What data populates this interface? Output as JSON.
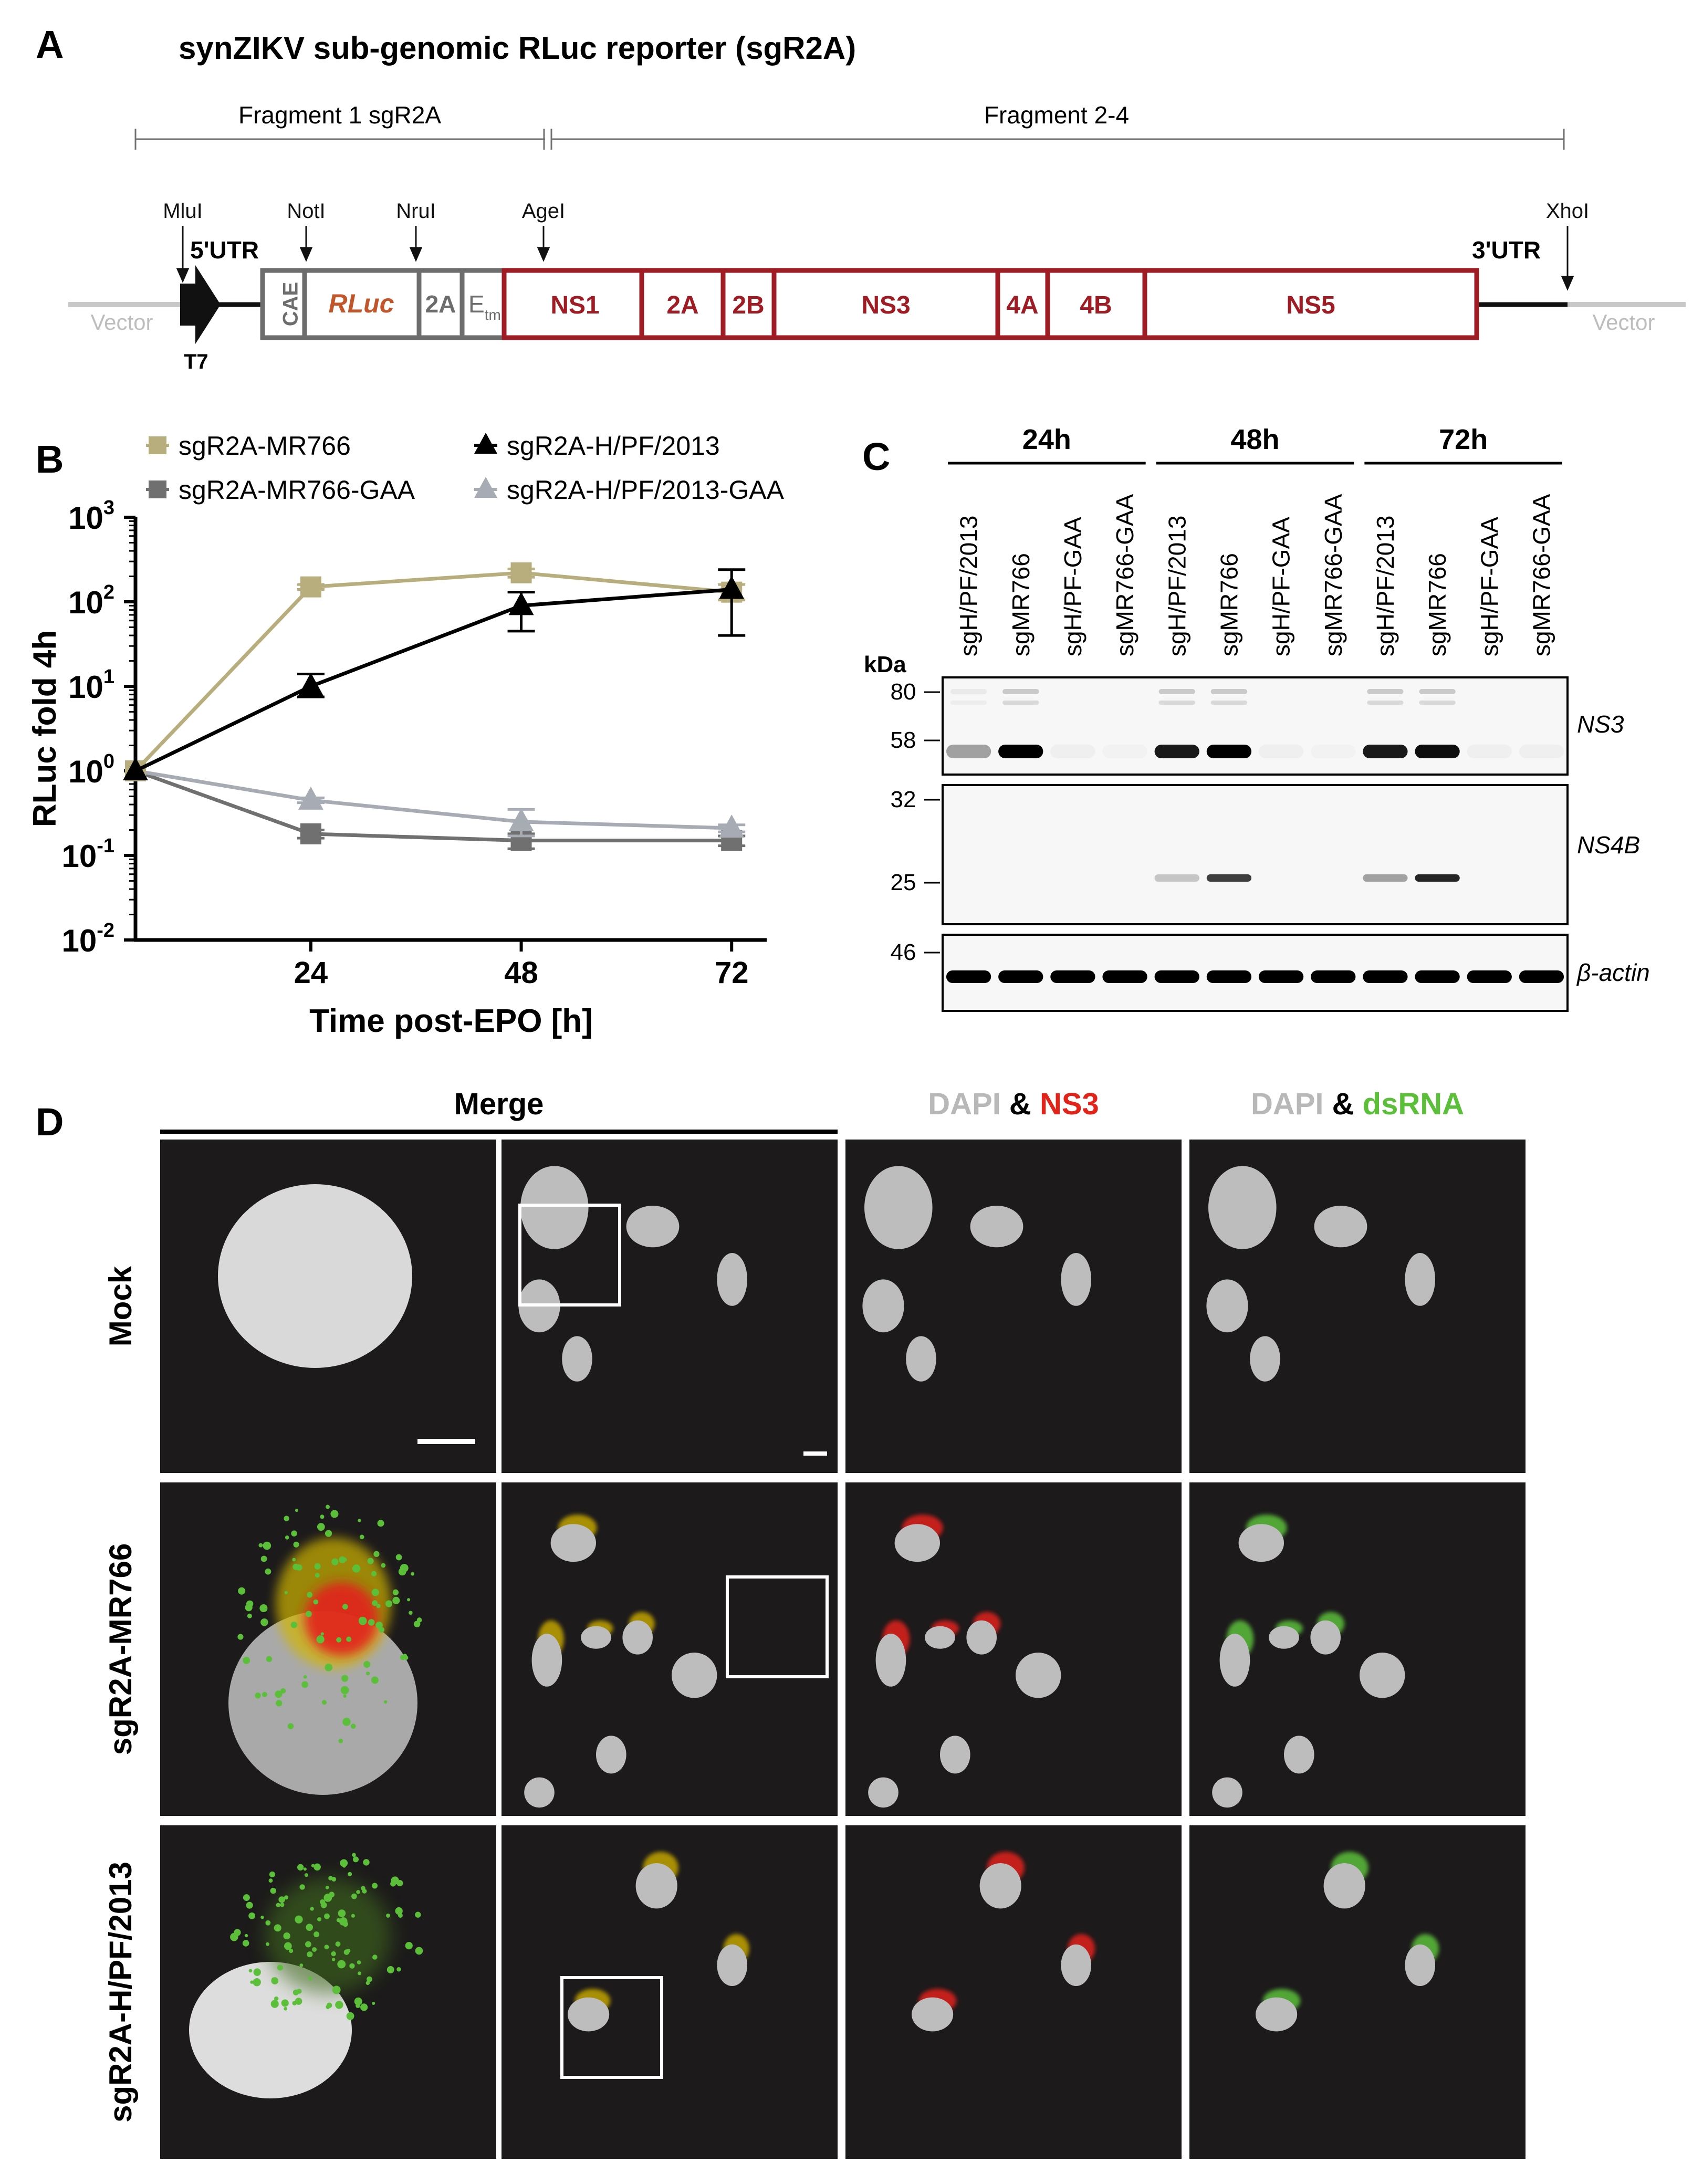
{
  "panel_labels": {
    "a": "A",
    "b": "B",
    "c": "C",
    "d": "D"
  },
  "panel_a": {
    "title": "synZIKV sub-genomic RLuc reporter (sgR2A)",
    "fragment1": "Fragment 1 sgR2A",
    "fragment2": "Fragment 2-4",
    "sites": {
      "mlui": "MluI",
      "noti": "NotI",
      "nrui": "NruI",
      "agei": "AgeI",
      "xhoi": "XhoI"
    },
    "utr5": "5'UTR",
    "utr3": "3'UTR",
    "t7": "T7",
    "vector_left": "Vector",
    "vector_right": "Vector",
    "cae": "CAE",
    "rluc": "RLuc",
    "p2a": "2A",
    "etm_main": "E",
    "etm_sub": "tm",
    "ns1": "NS1",
    "ns2a": "2A",
    "ns2b": "2B",
    "ns3": "NS3",
    "ns4a": "4A",
    "ns4b": "4B",
    "ns5": "NS5",
    "colors": {
      "grey_box": "#6d6d6d",
      "red_box": "#a01c24",
      "rluc_text": "#c0562a",
      "vector": "#bdbdbd"
    }
  },
  "chart_data": {
    "type": "line",
    "x": [
      4,
      24,
      48,
      72
    ],
    "x_ticks": [
      "24",
      "48",
      "72"
    ],
    "xlabel": "Time post-EPO [h]",
    "ylabel": "RLuc fold 4h",
    "y_scale": "log10",
    "ylim_exp": [
      -2,
      3
    ],
    "y_tick_base": "10",
    "y_tick_exps": [
      "3",
      "2",
      "1",
      "0",
      "-1",
      "-2"
    ],
    "series": [
      {
        "name": "sgR2A-MR766",
        "marker": "square",
        "color": "#b8ad7c",
        "values": [
          1,
          150,
          220,
          130
        ],
        "err_low": [
          1,
          140,
          195,
          105
        ],
        "err_high": [
          1,
          160,
          245,
          160
        ]
      },
      {
        "name": "sgR2A-MR766-GAA",
        "marker": "square",
        "color": "#707070",
        "values": [
          1,
          0.18,
          0.15,
          0.15
        ],
        "err_low": [
          1,
          0.16,
          0.12,
          0.13
        ],
        "err_high": [
          1,
          0.2,
          0.18,
          0.17
        ]
      },
      {
        "name": "sgR2A-H/PF/2013",
        "marker": "triangle",
        "color": "#000000",
        "values": [
          1,
          10,
          90,
          140
        ],
        "err_low": [
          1,
          7.5,
          45,
          40
        ],
        "err_high": [
          1,
          14,
          130,
          240
        ]
      },
      {
        "name": "sgR2A-H/PF/2013-GAA",
        "marker": "triangle",
        "color": "#a7acb4",
        "values": [
          1,
          0.45,
          0.25,
          0.21
        ],
        "err_low": [
          1,
          0.42,
          0.17,
          0.19
        ],
        "err_high": [
          1,
          0.48,
          0.35,
          0.23
        ]
      }
    ]
  },
  "panel_c": {
    "timepoints": [
      "24h",
      "48h",
      "72h"
    ],
    "lanes": [
      "sgH/PF/2013",
      "sgMR766",
      "sgH/PF-GAA",
      "sgMR766-GAA",
      "sgH/PF/2013",
      "sgMR766",
      "sgH/PF-GAA",
      "sgMR766-GAA",
      "sgH/PF/2013",
      "sgMR766",
      "sgH/PF-GAA",
      "sgMR766-GAA"
    ],
    "kda_label": "kDa",
    "markers": {
      "m80": "80",
      "m58": "58",
      "m32": "32",
      "m25": "25",
      "m46": "46"
    },
    "blot_ns3": "NS3",
    "blot_ns4b": "NS4B",
    "blot_actin": "β-actin",
    "band_ns3": [
      0.35,
      1.0,
      0.03,
      0.02,
      0.9,
      1.0,
      0.03,
      0.02,
      0.9,
      0.95,
      0.03,
      0.03
    ],
    "band_ns4b": [
      0.0,
      0.0,
      0.0,
      0.0,
      0.2,
      0.75,
      0.0,
      0.0,
      0.35,
      0.85,
      0.0,
      0.0
    ],
    "band_actin": [
      1,
      1,
      1,
      1,
      1,
      1,
      1,
      1,
      1,
      1,
      1,
      1
    ]
  },
  "panel_d": {
    "header_merge": "Merge",
    "header_ns3_dapi": "DAPI",
    "header_ns3_amp": "&",
    "header_ns3_marker": "NS3",
    "header_dsrna_dapi": "DAPI",
    "header_dsrna_amp": "&",
    "header_dsrna_marker": "dsRNA",
    "rows": [
      "Mock",
      "sgR2A-MR766",
      "sgR2A-H/PF/2013"
    ],
    "colors": {
      "dapi": "#bdbdbd",
      "ns3": "#e2231a",
      "dsrna": "#5bbf3a",
      "bg": "#1c1a1b"
    }
  }
}
